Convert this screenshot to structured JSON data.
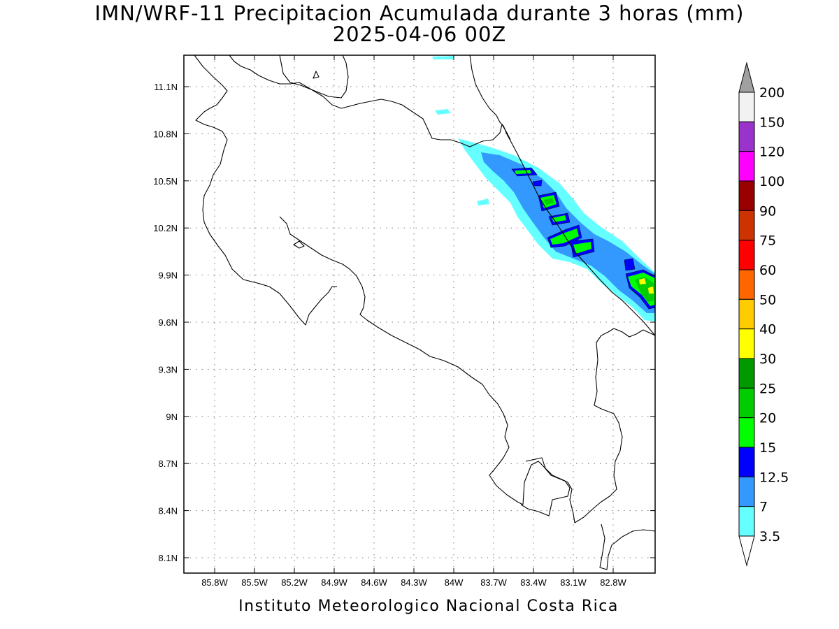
{
  "title": {
    "line1": "IMN/WRF-11 Precipitacion Acumulada durante 3 horas (mm)",
    "line2": "2025-04-06 00Z"
  },
  "footer": "Instituto Meteorologico Nacional Costa Rica",
  "axes": {
    "longitude_ticks": [
      "85.8W",
      "85.5W",
      "85.2W",
      "84.9W",
      "84.6W",
      "84.3W",
      "84W",
      "83.7W",
      "83.4W",
      "83.1W",
      "82.8W"
    ],
    "latitude_ticks": [
      "11.1N",
      "10.8N",
      "10.5N",
      "10.2N",
      "9.9N",
      "9.6N",
      "9.3N",
      "9N",
      "8.7N",
      "8.4N",
      "8.1N"
    ],
    "grid": "dotted"
  },
  "colorbar": {
    "labels": [
      "3.5",
      "7",
      "12.5",
      "15",
      "20",
      "25",
      "30",
      "40",
      "50",
      "60",
      "75",
      "90",
      "100",
      "120",
      "150",
      "200"
    ],
    "colors": [
      "#66ffff",
      "#3399ff",
      "#0000ff",
      "#00ff00",
      "#00cc00",
      "#009900",
      "#ffff00",
      "#ffcc00",
      "#ff6600",
      "#ff0000",
      "#cc3300",
      "#990000",
      "#ff00ff",
      "#9933cc",
      "#f2f2f2"
    ],
    "top_arrow_color": "#a0a0a0",
    "bottom_arrow_color": "#ffffff"
  },
  "precip_colors": {
    "light": "#66ffff",
    "moderate": "#3399ff",
    "heavy": "#0000ff",
    "very_heavy": "#00ff00",
    "intense": "#00cc00",
    "extreme": "#ffff00"
  }
}
